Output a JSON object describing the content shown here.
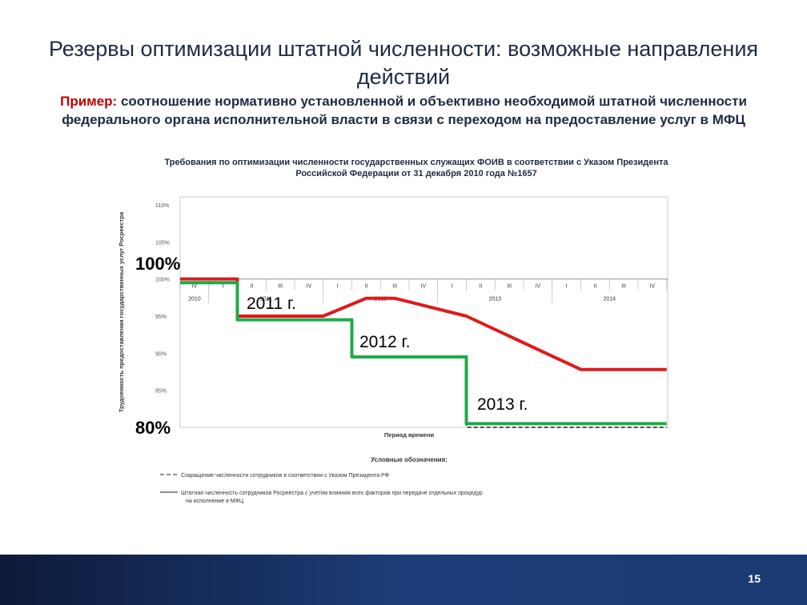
{
  "slide": {
    "title": "Резервы оптимизации штатной численности: возможные направления действий",
    "subtitle_prefix": "Пример:",
    "subtitle_text": " соотношение нормативно установленной и объективно необходимой штатной численности федерального органа исполнительной власти в связи с переходом на предоставление услуг в МФЦ",
    "page_number": "15"
  },
  "chart_data": {
    "type": "line",
    "title": "Требования по оптимизации численности государственных служащих ФОИВ в соответствии с Указом Президента Российской Федерации от 31 декабря 2010 года №1657",
    "xlabel": "Период времени",
    "ylabel": "Трудоемкость предоставления государственных услуг Росреестра",
    "ytick_labels": [
      "110%",
      "105%",
      "100%",
      "95%",
      "90%",
      "85%",
      "80%"
    ],
    "yticks": [
      110,
      105,
      100,
      95,
      90,
      85,
      80
    ],
    "ylim": [
      80,
      110
    ],
    "quarters": [
      "IV",
      "I",
      "II",
      "III",
      "IV",
      "I",
      "II",
      "III",
      "IV",
      "I",
      "II",
      "III",
      "IV",
      "I",
      "II",
      "III",
      "IV"
    ],
    "years": [
      {
        "label": "2010",
        "q": 0
      },
      {
        "label": "2011",
        "q": 2.5
      },
      {
        "label": "2012",
        "q": 6.5
      },
      {
        "label": "2013",
        "q": 10.5
      },
      {
        "label": "2014",
        "q": 14.5
      }
    ],
    "series": [
      {
        "name": "Сокращение численности сотрудников в соответствии с Указом Президента РФ",
        "role": "decree",
        "color": "#1a1a1a",
        "points": [
          [
            -0.5,
            100
          ],
          [
            1.5,
            100
          ],
          [
            1.5,
            94.5
          ],
          [
            5.5,
            94.5
          ],
          [
            5.5,
            89.5
          ],
          [
            9.5,
            89.5
          ],
          [
            9.5,
            80
          ],
          [
            16.5,
            80
          ]
        ]
      },
      {
        "name": "Штатная численность сотрудников Росреестра с учетом влияния всех факторов при передаче отдельных процедур на исполнение в МФЦ",
        "role": "actual",
        "color": "#e0191b",
        "points": [
          [
            -0.5,
            100
          ],
          [
            1.5,
            100
          ],
          [
            1.5,
            95
          ],
          [
            4.5,
            95
          ],
          [
            6.0,
            97.4
          ],
          [
            7.0,
            97.4
          ],
          [
            9.5,
            95
          ],
          [
            13.5,
            87.8
          ],
          [
            16.5,
            87.8
          ]
        ]
      },
      {
        "name": "",
        "role": "target",
        "color": "#1faa4a",
        "points": [
          [
            -0.5,
            99.5
          ],
          [
            1.5,
            99.5
          ],
          [
            1.5,
            94.5
          ],
          [
            5.5,
            94.5
          ],
          [
            5.5,
            89.5
          ],
          [
            9.5,
            89.5
          ],
          [
            9.5,
            80.5
          ],
          [
            16.5,
            80.5
          ]
        ]
      }
    ],
    "annotations": [
      {
        "text": "100%",
        "role": "level-100"
      },
      {
        "text": "80%",
        "role": "level-80"
      },
      {
        "text": "2011 г.",
        "role": "step-2011"
      },
      {
        "text": "2012 г.",
        "role": "step-2012"
      },
      {
        "text": "2013 г.",
        "role": "step-2013"
      }
    ],
    "legend_title": "Условные обозначения:",
    "legend_position": "bottom",
    "grid": false
  }
}
